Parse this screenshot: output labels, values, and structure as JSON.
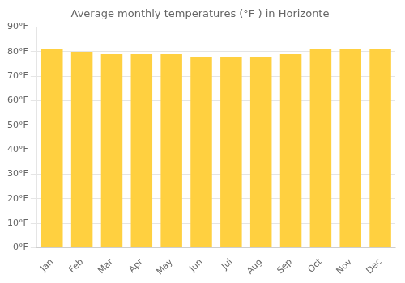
{
  "chart_data": {
    "type": "bar",
    "title": "Average monthly temperatures (°F ) in Horizonte",
    "categories": [
      "Jan",
      "Feb",
      "Mar",
      "Apr",
      "May",
      "Jun",
      "Jul",
      "Aug",
      "Sep",
      "Oct",
      "Nov",
      "Dec"
    ],
    "values": [
      81,
      80,
      79,
      79,
      79,
      78,
      78,
      78,
      79,
      81,
      81,
      81
    ],
    "color": "#FFD040",
    "ylim": [
      0,
      90
    ],
    "yticks": [
      {
        "value": 0,
        "label": "0°F"
      },
      {
        "value": 10,
        "label": "10°F"
      },
      {
        "value": 20,
        "label": "20°F"
      },
      {
        "value": 30,
        "label": "30°F"
      },
      {
        "value": 40,
        "label": "40°F"
      },
      {
        "value": 50,
        "label": "50°F"
      },
      {
        "value": 60,
        "label": "60°F"
      },
      {
        "value": 70,
        "label": "70°F"
      },
      {
        "value": 80,
        "label": "80°F"
      },
      {
        "value": 90,
        "label": "90°F"
      }
    ],
    "grid": true
  }
}
